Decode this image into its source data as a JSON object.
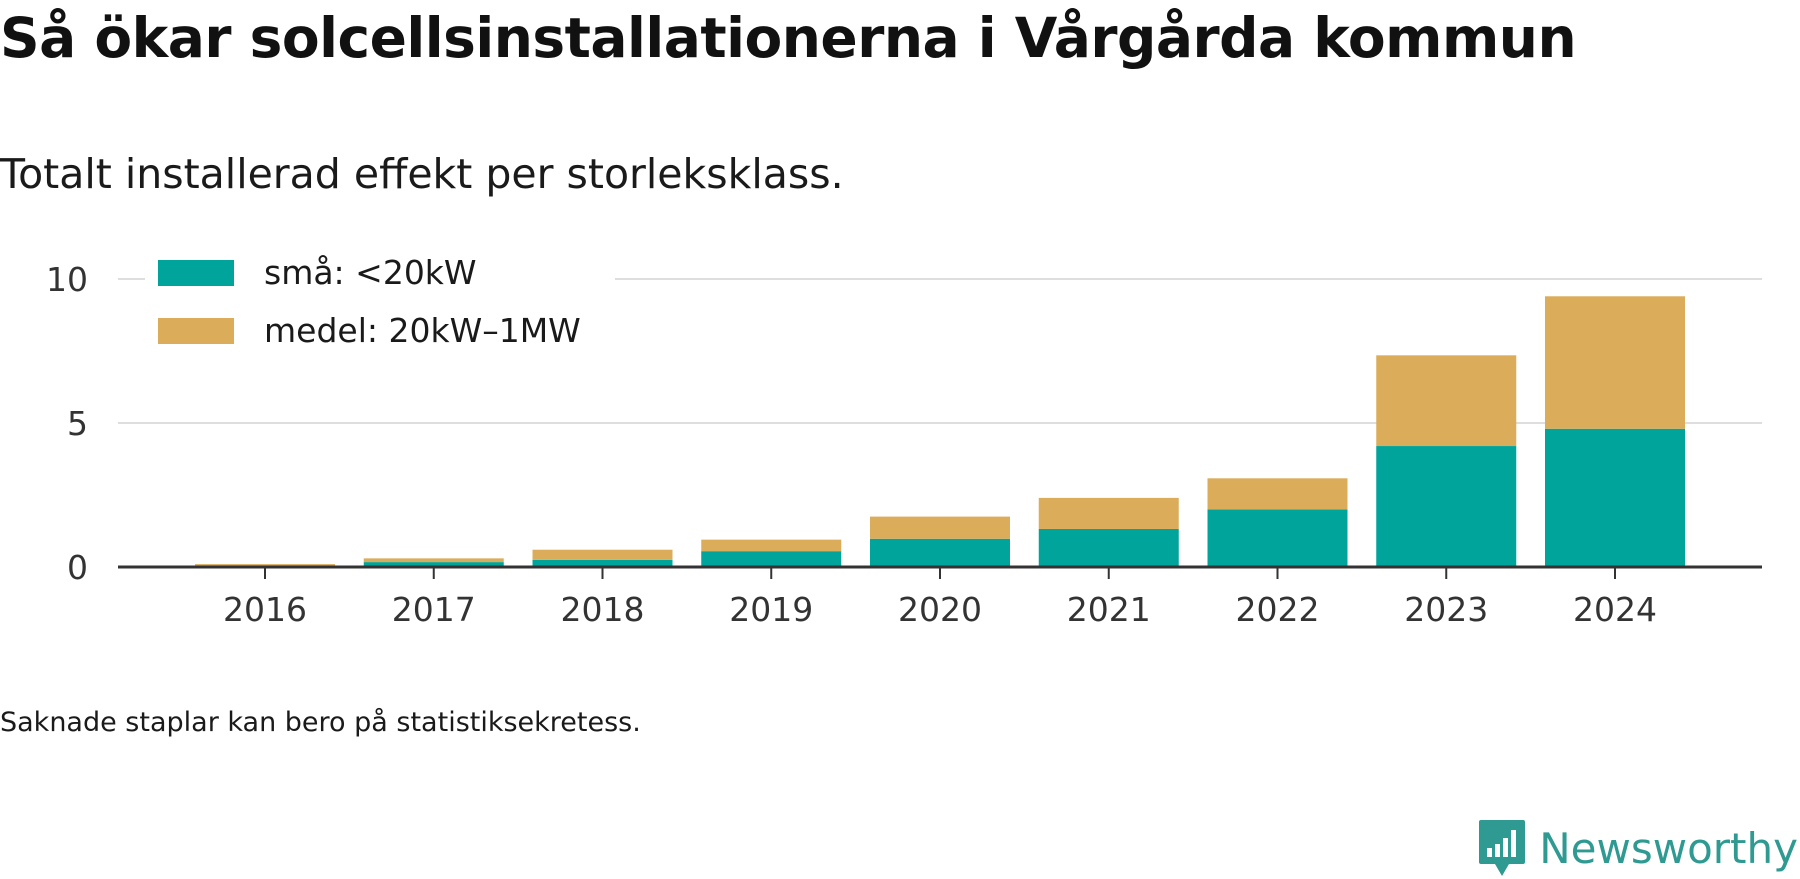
{
  "header": {
    "title": "Så ökar solcellsinstallationerna i Vårgårda kommun",
    "subtitle": "Totalt installerad effekt per storleksklass."
  },
  "footer": {
    "note": "Saknade staplar kan bero på statistiksekretess.",
    "logo_text": "Newsworthy",
    "logo_icon": "bar-chart-speech-bubble-icon"
  },
  "colors": {
    "small": "#00a49a",
    "medium": "#dbad5b",
    "grid": "#dedede",
    "axis": "#333333",
    "brand": "#2f9a92"
  },
  "chart_data": {
    "type": "bar",
    "stacked": true,
    "title": "Så ökar solcellsinstallationerna i Vårgårda kommun",
    "subtitle": "Totalt installerad effekt per storleksklass.",
    "xlabel": "",
    "ylabel": "",
    "categories": [
      "2016",
      "2017",
      "2018",
      "2019",
      "2020",
      "2021",
      "2022",
      "2023",
      "2024"
    ],
    "series": [
      {
        "name": "små: <20kW",
        "color": "#00a49a",
        "values": [
          0.05,
          0.17,
          0.25,
          0.55,
          0.98,
          1.32,
          2.0,
          4.2,
          4.8
        ]
      },
      {
        "name": "medel: 20kW–1MW",
        "color": "#dbad5b",
        "values": [
          0.05,
          0.13,
          0.35,
          0.4,
          0.77,
          1.08,
          1.08,
          3.15,
          4.6
        ]
      }
    ],
    "yticks": [
      0,
      5,
      10
    ],
    "ylim": [
      0,
      10
    ],
    "grid": true,
    "legend": "top-left"
  }
}
